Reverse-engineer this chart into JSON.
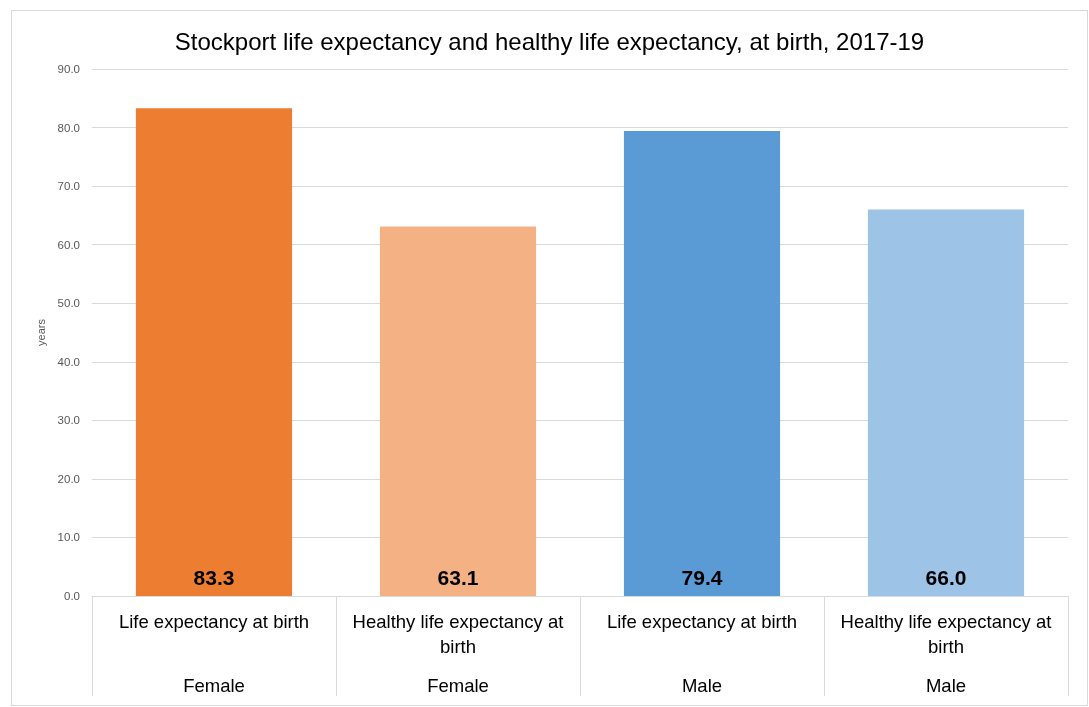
{
  "chart_data": {
    "type": "bar",
    "title": "Stockport life expectancy and healthy life expectancy, at birth, 2017-19",
    "ylabel": "years",
    "categories": [
      "Life expectancy at birth\nFemale",
      "Healthy life expectancy at birth\nFemale",
      "Life expectancy at birth\nMale",
      "Healthy life expectancy at birth\nMale"
    ],
    "values": [
      83.3,
      63.1,
      79.4,
      66.0
    ],
    "colors": [
      "#ed7d31",
      "#f4b183",
      "#5b9bd5",
      "#9dc3e6"
    ],
    "value_labels": [
      "83.3",
      "63.1",
      "79.4",
      "66.0"
    ],
    "ylim": [
      0,
      90
    ],
    "yticks": [
      {
        "value": 0,
        "label": "0.0"
      },
      {
        "value": 10,
        "label": "10.0"
      },
      {
        "value": 20,
        "label": "20.0"
      },
      {
        "value": 30,
        "label": "30.0"
      },
      {
        "value": 40,
        "label": "40.0"
      },
      {
        "value": 50,
        "label": "50.0"
      },
      {
        "value": 60,
        "label": "60.0"
      },
      {
        "value": 70,
        "label": "70.0"
      },
      {
        "value": 80,
        "label": "80.0"
      },
      {
        "value": 90,
        "label": "90.0"
      }
    ],
    "grid": "y"
  }
}
